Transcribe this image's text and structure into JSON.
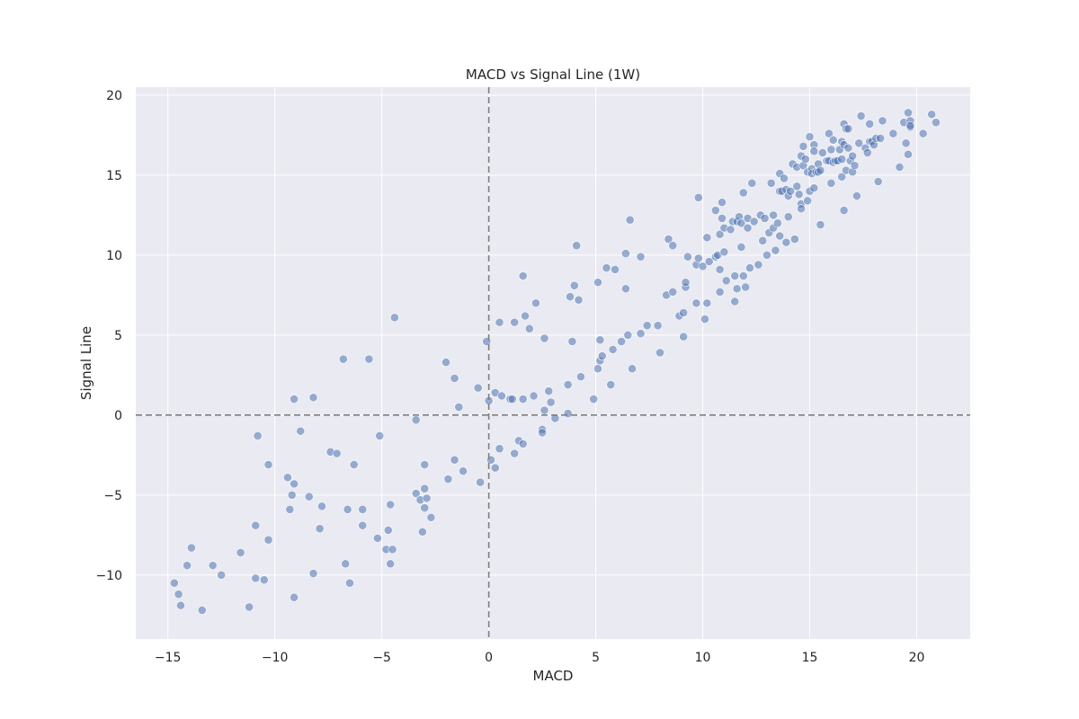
{
  "chart_data": {
    "type": "scatter",
    "title": "MACD vs Signal Line (1W)",
    "xlabel": "MACD",
    "ylabel": "Signal Line",
    "xlim": [
      -16.5,
      22.5
    ],
    "ylim": [
      -14,
      20.5
    ],
    "xticks": [
      -15,
      -10,
      -5,
      0,
      5,
      10,
      15,
      20
    ],
    "yticks": [
      -10,
      -5,
      0,
      5,
      10,
      15,
      20
    ],
    "xtick_labels": [
      "−15",
      "−10",
      "−5",
      "0",
      "5",
      "10",
      "15",
      "20"
    ],
    "ytick_labels": [
      "−10",
      "−5",
      "0",
      "5",
      "10",
      "15",
      "20"
    ],
    "grid": true,
    "reference_lines": {
      "x": 0,
      "y": 0,
      "style": "dashed"
    },
    "point_color": "#4c72b0",
    "background_color": "#eaeaf2",
    "points": [
      [
        -14.7,
        -10.5
      ],
      [
        -14.5,
        -11.2
      ],
      [
        -14.4,
        -11.9
      ],
      [
        -14.1,
        -9.4
      ],
      [
        -13.9,
        -8.3
      ],
      [
        -13.4,
        -12.2
      ],
      [
        -12.9,
        -9.4
      ],
      [
        -12.5,
        -10.0
      ],
      [
        -11.6,
        -8.6
      ],
      [
        -11.2,
        -12.0
      ],
      [
        -10.9,
        -6.9
      ],
      [
        -10.9,
        -10.2
      ],
      [
        -10.8,
        -1.3
      ],
      [
        -10.5,
        -10.3
      ],
      [
        -10.3,
        -7.8
      ],
      [
        -10.3,
        -3.1
      ],
      [
        -9.4,
        -3.9
      ],
      [
        -9.3,
        -5.9
      ],
      [
        -9.2,
        -5.0
      ],
      [
        -9.1,
        -4.3
      ],
      [
        -9.1,
        -11.4
      ],
      [
        -9.1,
        1.0
      ],
      [
        -8.8,
        -1.0
      ],
      [
        -8.4,
        -5.1
      ],
      [
        -8.2,
        -9.9
      ],
      [
        -8.2,
        1.1
      ],
      [
        -7.9,
        -7.1
      ],
      [
        -7.8,
        -5.7
      ],
      [
        -7.4,
        -2.3
      ],
      [
        -7.1,
        -2.4
      ],
      [
        -6.8,
        3.5
      ],
      [
        -6.7,
        -9.3
      ],
      [
        -6.6,
        -5.9
      ],
      [
        -6.5,
        -10.5
      ],
      [
        -6.3,
        -3.1
      ],
      [
        -5.9,
        -5.9
      ],
      [
        -5.9,
        -6.9
      ],
      [
        -5.6,
        3.5
      ],
      [
        -5.2,
        -7.7
      ],
      [
        -5.1,
        -1.3
      ],
      [
        -4.8,
        -8.4
      ],
      [
        -4.7,
        -7.2
      ],
      [
        -4.6,
        -5.6
      ],
      [
        -4.6,
        -9.3
      ],
      [
        -4.5,
        -8.4
      ],
      [
        -4.4,
        6.1
      ],
      [
        -3.4,
        -0.3
      ],
      [
        -3.4,
        -4.9
      ],
      [
        -3.2,
        -5.3
      ],
      [
        -3.1,
        -7.3
      ],
      [
        -3.0,
        -5.8
      ],
      [
        -3.0,
        -3.1
      ],
      [
        -3.0,
        -4.6
      ],
      [
        -2.9,
        -5.2
      ],
      [
        -2.7,
        -6.4
      ],
      [
        -2.0,
        3.3
      ],
      [
        -1.9,
        -4.0
      ],
      [
        -1.6,
        2.3
      ],
      [
        -1.6,
        -2.8
      ],
      [
        -1.4,
        0.5
      ],
      [
        -1.2,
        -3.5
      ],
      [
        -0.5,
        1.7
      ],
      [
        -0.4,
        -4.2
      ],
      [
        -0.1,
        4.6
      ],
      [
        0.0,
        0.9
      ],
      [
        0.1,
        -2.8
      ],
      [
        0.3,
        1.4
      ],
      [
        0.3,
        -3.3
      ],
      [
        0.5,
        5.8
      ],
      [
        0.5,
        -2.1
      ],
      [
        0.6,
        1.2
      ],
      [
        1.0,
        1.0
      ],
      [
        1.1,
        1.0
      ],
      [
        1.2,
        -2.4
      ],
      [
        1.2,
        5.8
      ],
      [
        1.4,
        -1.6
      ],
      [
        1.6,
        1.0
      ],
      [
        1.6,
        -1.8
      ],
      [
        1.6,
        8.7
      ],
      [
        1.7,
        6.2
      ],
      [
        1.9,
        5.4
      ],
      [
        2.1,
        1.2
      ],
      [
        2.2,
        7.0
      ],
      [
        2.5,
        -0.9
      ],
      [
        2.5,
        -1.1
      ],
      [
        2.6,
        0.3
      ],
      [
        2.6,
        4.8
      ],
      [
        2.8,
        1.5
      ],
      [
        2.9,
        0.8
      ],
      [
        3.1,
        -0.2
      ],
      [
        3.7,
        0.1
      ],
      [
        3.7,
        1.9
      ],
      [
        3.8,
        7.4
      ],
      [
        3.9,
        4.6
      ],
      [
        4.0,
        8.1
      ],
      [
        4.1,
        10.6
      ],
      [
        4.2,
        7.2
      ],
      [
        4.3,
        2.4
      ],
      [
        4.9,
        1.0
      ],
      [
        5.1,
        2.9
      ],
      [
        5.1,
        8.3
      ],
      [
        5.2,
        4.7
      ],
      [
        5.2,
        3.4
      ],
      [
        5.3,
        3.7
      ],
      [
        5.5,
        9.2
      ],
      [
        5.7,
        1.9
      ],
      [
        5.8,
        4.1
      ],
      [
        5.9,
        9.1
      ],
      [
        6.2,
        4.6
      ],
      [
        6.4,
        10.1
      ],
      [
        6.4,
        7.9
      ],
      [
        6.5,
        5.0
      ],
      [
        6.6,
        12.2
      ],
      [
        6.7,
        2.9
      ],
      [
        7.1,
        9.9
      ],
      [
        7.1,
        5.1
      ],
      [
        7.4,
        5.6
      ],
      [
        7.9,
        5.6
      ],
      [
        8.0,
        3.9
      ],
      [
        8.3,
        7.5
      ],
      [
        8.4,
        11.0
      ],
      [
        8.6,
        10.6
      ],
      [
        8.6,
        7.7
      ],
      [
        8.9,
        6.2
      ],
      [
        9.1,
        4.9
      ],
      [
        9.1,
        6.4
      ],
      [
        9.2,
        8.0
      ],
      [
        9.2,
        8.3
      ],
      [
        9.3,
        9.9
      ],
      [
        9.7,
        7.0
      ],
      [
        9.7,
        9.4
      ],
      [
        9.8,
        13.6
      ],
      [
        9.8,
        9.8
      ],
      [
        10.0,
        9.3
      ],
      [
        10.1,
        6.0
      ],
      [
        10.2,
        11.1
      ],
      [
        10.2,
        7.0
      ],
      [
        10.3,
        9.6
      ],
      [
        10.6,
        12.8
      ],
      [
        10.6,
        9.9
      ],
      [
        10.7,
        10.0
      ],
      [
        10.8,
        9.1
      ],
      [
        10.8,
        7.7
      ],
      [
        10.8,
        11.3
      ],
      [
        10.9,
        12.3
      ],
      [
        10.9,
        13.3
      ],
      [
        11.0,
        11.7
      ],
      [
        11.0,
        10.2
      ],
      [
        11.1,
        8.4
      ],
      [
        11.3,
        11.6
      ],
      [
        11.4,
        12.1
      ],
      [
        11.5,
        7.1
      ],
      [
        11.5,
        8.7
      ],
      [
        11.6,
        12.1
      ],
      [
        11.6,
        7.9
      ],
      [
        11.7,
        12.4
      ],
      [
        11.8,
        12.0
      ],
      [
        11.8,
        10.5
      ],
      [
        11.9,
        8.7
      ],
      [
        11.9,
        13.9
      ],
      [
        12.0,
        8.0
      ],
      [
        12.1,
        11.7
      ],
      [
        12.1,
        12.3
      ],
      [
        12.2,
        9.2
      ],
      [
        12.3,
        14.5
      ],
      [
        12.4,
        12.1
      ],
      [
        12.6,
        9.4
      ],
      [
        12.7,
        12.5
      ],
      [
        12.8,
        10.9
      ],
      [
        12.9,
        12.3
      ],
      [
        13.0,
        10.0
      ],
      [
        13.1,
        11.4
      ],
      [
        13.2,
        14.5
      ],
      [
        13.3,
        12.5
      ],
      [
        13.3,
        11.7
      ],
      [
        13.4,
        10.3
      ],
      [
        13.5,
        12.0
      ],
      [
        13.6,
        11.2
      ],
      [
        13.6,
        14.0
      ],
      [
        13.6,
        15.1
      ],
      [
        13.7,
        14.0
      ],
      [
        13.8,
        14.8
      ],
      [
        13.9,
        10.8
      ],
      [
        13.9,
        14.1
      ],
      [
        14.0,
        13.7
      ],
      [
        14.0,
        12.4
      ],
      [
        14.1,
        14.0
      ],
      [
        14.2,
        15.7
      ],
      [
        14.3,
        11.0
      ],
      [
        14.4,
        15.5
      ],
      [
        14.4,
        14.3
      ],
      [
        14.5,
        13.8
      ],
      [
        14.6,
        13.2
      ],
      [
        14.6,
        12.9
      ],
      [
        14.6,
        16.2
      ],
      [
        14.7,
        15.6
      ],
      [
        14.7,
        16.8
      ],
      [
        14.8,
        16.0
      ],
      [
        14.9,
        15.2
      ],
      [
        14.9,
        13.4
      ],
      [
        15.0,
        14.0
      ],
      [
        15.0,
        17.4
      ],
      [
        15.1,
        15.4
      ],
      [
        15.1,
        15.1
      ],
      [
        15.2,
        16.9
      ],
      [
        15.2,
        14.2
      ],
      [
        15.2,
        16.5
      ],
      [
        15.3,
        15.2
      ],
      [
        15.4,
        15.2
      ],
      [
        15.4,
        15.7
      ],
      [
        15.5,
        11.9
      ],
      [
        15.5,
        15.3
      ],
      [
        15.6,
        16.4
      ],
      [
        15.8,
        15.9
      ],
      [
        15.9,
        17.6
      ],
      [
        15.9,
        15.9
      ],
      [
        16.0,
        16.6
      ],
      [
        16.0,
        14.5
      ],
      [
        16.1,
        17.2
      ],
      [
        16.1,
        15.8
      ],
      [
        16.2,
        15.9
      ],
      [
        16.3,
        15.9
      ],
      [
        16.4,
        16.6
      ],
      [
        16.5,
        17.1
      ],
      [
        16.5,
        16.0
      ],
      [
        16.5,
        14.9
      ],
      [
        16.6,
        18.2
      ],
      [
        16.6,
        16.9
      ],
      [
        16.6,
        12.8
      ],
      [
        16.7,
        17.9
      ],
      [
        16.7,
        15.3
      ],
      [
        16.8,
        16.7
      ],
      [
        16.8,
        17.9
      ],
      [
        16.9,
        15.9
      ],
      [
        17.0,
        15.2
      ],
      [
        17.0,
        16.2
      ],
      [
        17.1,
        15.6
      ],
      [
        17.2,
        13.7
      ],
      [
        17.3,
        17.0
      ],
      [
        17.4,
        18.7
      ],
      [
        17.6,
        16.7
      ],
      [
        17.7,
        16.4
      ],
      [
        17.8,
        17.1
      ],
      [
        17.8,
        18.2
      ],
      [
        17.9,
        17.1
      ],
      [
        18.0,
        16.9
      ],
      [
        18.1,
        17.3
      ],
      [
        18.2,
        14.6
      ],
      [
        18.3,
        17.3
      ],
      [
        18.4,
        18.4
      ],
      [
        18.9,
        17.6
      ],
      [
        19.2,
        15.5
      ],
      [
        19.4,
        18.3
      ],
      [
        19.5,
        17.0
      ],
      [
        19.6,
        16.3
      ],
      [
        19.6,
        18.9
      ],
      [
        19.7,
        18.0
      ],
      [
        19.7,
        18.4
      ],
      [
        19.7,
        18.1
      ],
      [
        20.3,
        17.6
      ],
      [
        20.7,
        18.8
      ],
      [
        20.9,
        18.3
      ]
    ]
  }
}
